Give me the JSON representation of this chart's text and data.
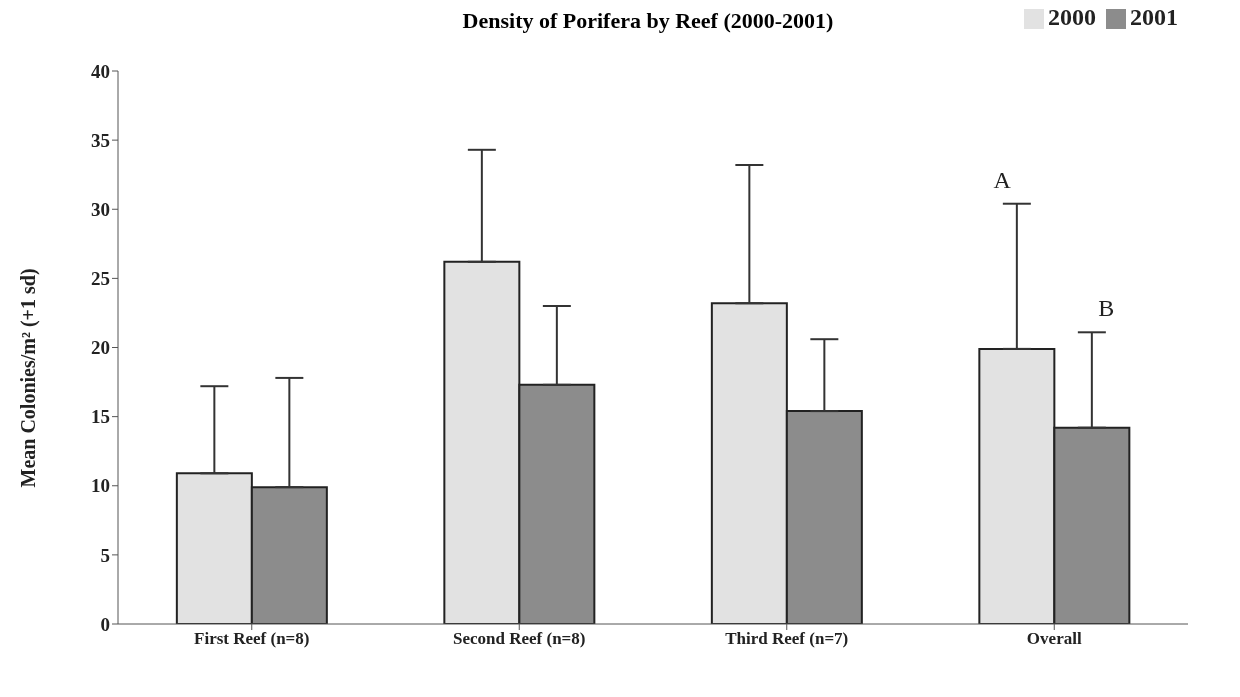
{
  "chart_data": {
    "type": "bar",
    "title": "Density of Porifera by Reef (2000-2001)",
    "ylabel": "Mean Colonies/m² (+1 sd)",
    "categories": [
      "First Reef (n=8)",
      "Second Reef (n=8)",
      "Third Reef (n=7)",
      "Overall"
    ],
    "series": [
      {
        "name": "2000",
        "color": "#e2e2e2",
        "values": [
          10.9,
          26.2,
          23.2,
          19.9
        ],
        "errors": [
          [
            10.9,
            17.2
          ],
          [
            26.2,
            34.3
          ],
          [
            23.2,
            33.2
          ],
          [
            19.9,
            30.4
          ]
        ]
      },
      {
        "name": "2001",
        "color": "#8c8c8c",
        "values": [
          9.9,
          17.3,
          15.4,
          14.2
        ],
        "errors": [
          [
            9.9,
            17.8
          ],
          [
            17.3,
            23.0
          ],
          [
            15.4,
            20.6
          ],
          [
            14.2,
            21.1
          ]
        ]
      }
    ],
    "ylim": [
      0,
      40
    ],
    "yticks": [
      0,
      5,
      10,
      15,
      20,
      25,
      30,
      35,
      40
    ],
    "grid": false,
    "legend": "top right",
    "annotations": [
      "A",
      "B"
    ]
  }
}
